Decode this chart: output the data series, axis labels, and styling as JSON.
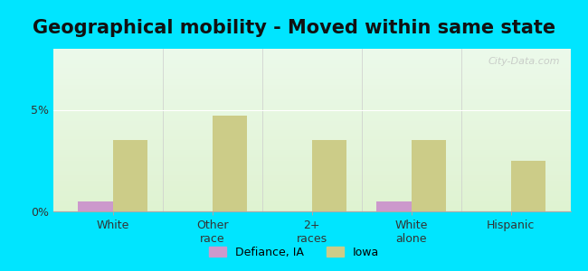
{
  "title": "Geographical mobility - Moved within same state",
  "categories": [
    "White",
    "Other\nrace",
    "2+\nraces",
    "White\nalone",
    "Hispanic"
  ],
  "defiance_values": [
    0.5,
    0.0,
    0.0,
    0.5,
    0.0
  ],
  "iowa_values": [
    3.5,
    4.7,
    3.5,
    3.5,
    2.5
  ],
  "defiance_color": "#cc99cc",
  "iowa_color": "#cccc88",
  "ylim": [
    0,
    8
  ],
  "yticks": [
    0,
    5
  ],
  "ytick_labels": [
    "0%",
    "5%"
  ],
  "background_outer": "#00e5ff",
  "background_inner_top": "#e8f5e0",
  "background_inner_bottom": "#f0fff0",
  "legend_defiance": "Defiance, IA",
  "legend_iowa": "Iowa",
  "bar_width": 0.35,
  "title_fontsize": 15,
  "watermark": "City-Data.com"
}
